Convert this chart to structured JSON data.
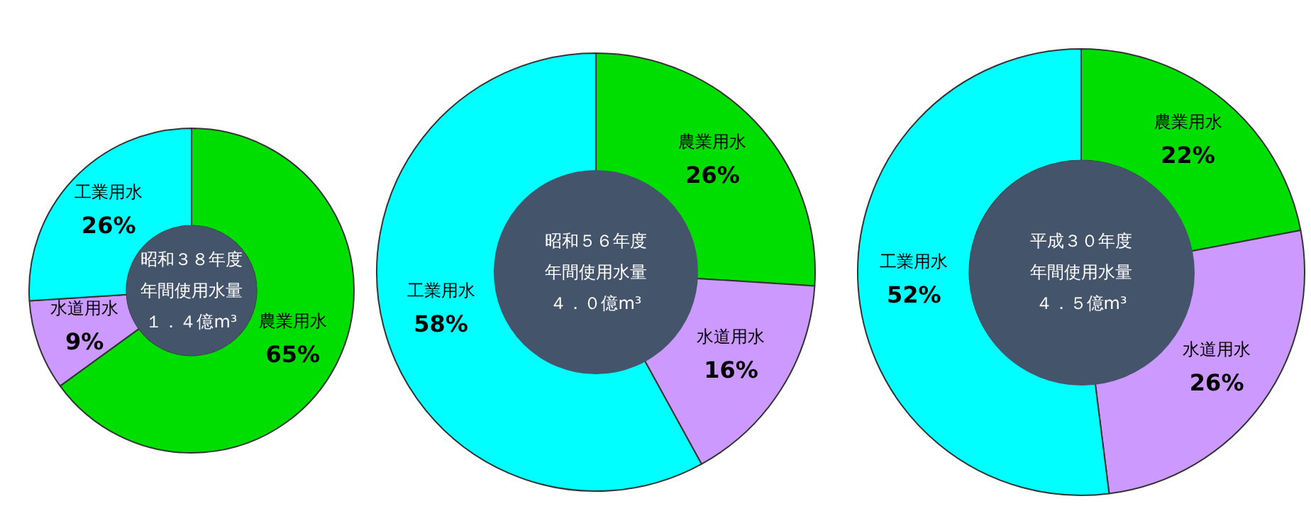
{
  "chart_data": [
    {
      "type": "donut",
      "title": "昭和３８年度",
      "subtitle": "年間使用水量",
      "annotations": [
        "１．４億m³"
      ],
      "categories": [
        "農業用水",
        "水道用水",
        "工業用水"
      ],
      "values": [
        65,
        9,
        26
      ],
      "value_labels": [
        "65%",
        "9%",
        "26%"
      ],
      "colors": [
        "#00dd00",
        "#cc99ff",
        "#00ffff"
      ],
      "legend": false
    },
    {
      "type": "donut",
      "title": "昭和５６年度",
      "subtitle": "年間使用水量",
      "annotations": [
        "４．０億m³"
      ],
      "categories": [
        "農業用水",
        "水道用水",
        "工業用水"
      ],
      "values": [
        26,
        16,
        58
      ],
      "value_labels": [
        "26%",
        "16%",
        "58%"
      ],
      "colors": [
        "#00dd00",
        "#cc99ff",
        "#00ffff"
      ],
      "legend": false
    },
    {
      "type": "donut",
      "title": "平成３０年度",
      "subtitle": "年間使用水量",
      "annotations": [
        "４．５億m³"
      ],
      "categories": [
        "農業用水",
        "水道用水",
        "工業用水"
      ],
      "values": [
        22,
        26,
        52
      ],
      "value_labels": [
        "22%",
        "26%",
        "52%"
      ],
      "colors": [
        "#00dd00",
        "#cc99ff",
        "#00ffff"
      ],
      "legend": false
    }
  ]
}
